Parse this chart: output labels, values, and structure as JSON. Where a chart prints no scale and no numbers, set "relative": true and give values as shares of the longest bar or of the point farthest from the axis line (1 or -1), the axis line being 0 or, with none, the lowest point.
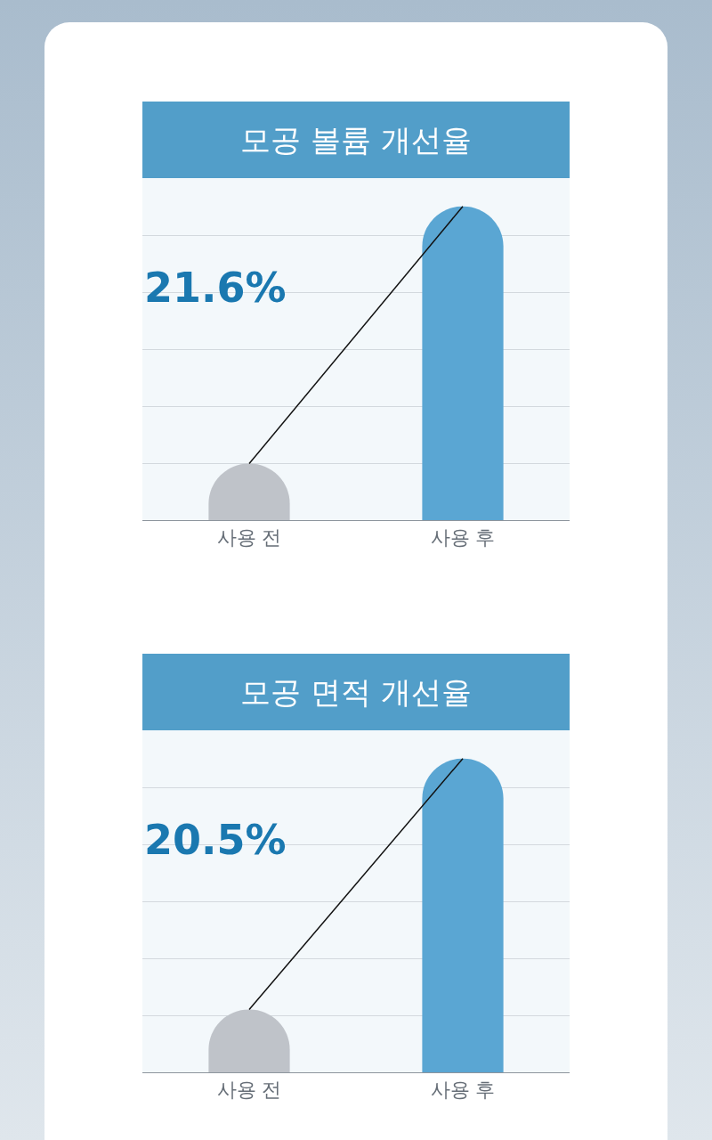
{
  "chart_data": [
    {
      "type": "bar",
      "title": "모공 볼륨 개선율",
      "categories": [
        "사용 전",
        "사용 후"
      ],
      "relative": true,
      "grid": "y",
      "series": [
        {
          "colors": [
            "#bfc3c9",
            "#5aa6d3"
          ],
          "values": [
            0.18,
            1
          ]
        },
        {
          "type": "line",
          "color": "#111111",
          "values": [
            0.18,
            1
          ]
        }
      ],
      "annotations": [
        "21.6%"
      ]
    },
    {
      "type": "bar",
      "title": "모공 면적 개선율",
      "categories": [
        "사용 전",
        "사용 후"
      ],
      "relative": true,
      "grid": "y",
      "series": [
        {
          "colors": [
            "#bfc3c9",
            "#5aa6d3"
          ],
          "values": [
            0.2,
            1
          ]
        },
        {
          "type": "line",
          "color": "#111111",
          "values": [
            0.2,
            1
          ]
        }
      ],
      "annotations": [
        "20.5%"
      ]
    }
  ]
}
